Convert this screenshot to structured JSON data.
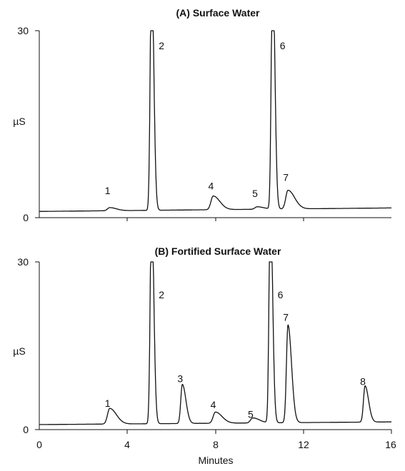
{
  "chart_data": [
    {
      "type": "line",
      "title": "(A) Surface Water",
      "xlabel": "",
      "ylabel": "µS",
      "xlim": [
        0,
        16
      ],
      "ylim": [
        0,
        30
      ],
      "yticks": [
        "0",
        "30"
      ],
      "baseline": 1.0,
      "drift": 0.035,
      "peaks": [
        {
          "label": "1",
          "x": 3.2,
          "height": 0.5,
          "label_y": 3.8
        },
        {
          "label": "2",
          "x": 5.1,
          "height": 40,
          "label_y": 27
        },
        {
          "label": "4",
          "x": 7.9,
          "height": 2.2,
          "label_y": 4.5
        },
        {
          "label": "5",
          "x": 9.9,
          "height": 0.4,
          "label_y": 3.3
        },
        {
          "label": "6",
          "x": 10.6,
          "height": 40,
          "label_y": 27
        },
        {
          "label": "7",
          "x": 11.3,
          "height": 3.0,
          "label_y": 5.9
        }
      ]
    },
    {
      "type": "line",
      "title": "(B) Fortified Surface Water",
      "xlabel": "Minutes",
      "ylabel": "µS",
      "xlim": [
        0,
        16
      ],
      "ylim": [
        0,
        30
      ],
      "xticks": [
        "0",
        "4",
        "8",
        "12",
        "16"
      ],
      "yticks": [
        "0",
        "30"
      ],
      "baseline": 0.9,
      "drift": 0.03,
      "peaks": [
        {
          "label": "1",
          "x": 3.2,
          "height": 2.8,
          "label_y": 4.1
        },
        {
          "label": "2",
          "x": 5.1,
          "height": 40,
          "label_y": 23.5
        },
        {
          "label": "3",
          "x": 6.5,
          "height": 7.0,
          "label_y": 8.5
        },
        {
          "label": "4",
          "x": 8.0,
          "height": 2.0,
          "label_y": 3.8
        },
        {
          "label": "5",
          "x": 9.7,
          "height": 0.9,
          "label_y": 2.1
        },
        {
          "label": "6",
          "x": 10.5,
          "height": 40,
          "label_y": 23.5
        },
        {
          "label": "7",
          "x": 11.3,
          "height": 17.5,
          "label_y": 19.5
        },
        {
          "label": "8",
          "x": 14.8,
          "height": 6.5,
          "label_y": 8.0
        }
      ]
    }
  ]
}
